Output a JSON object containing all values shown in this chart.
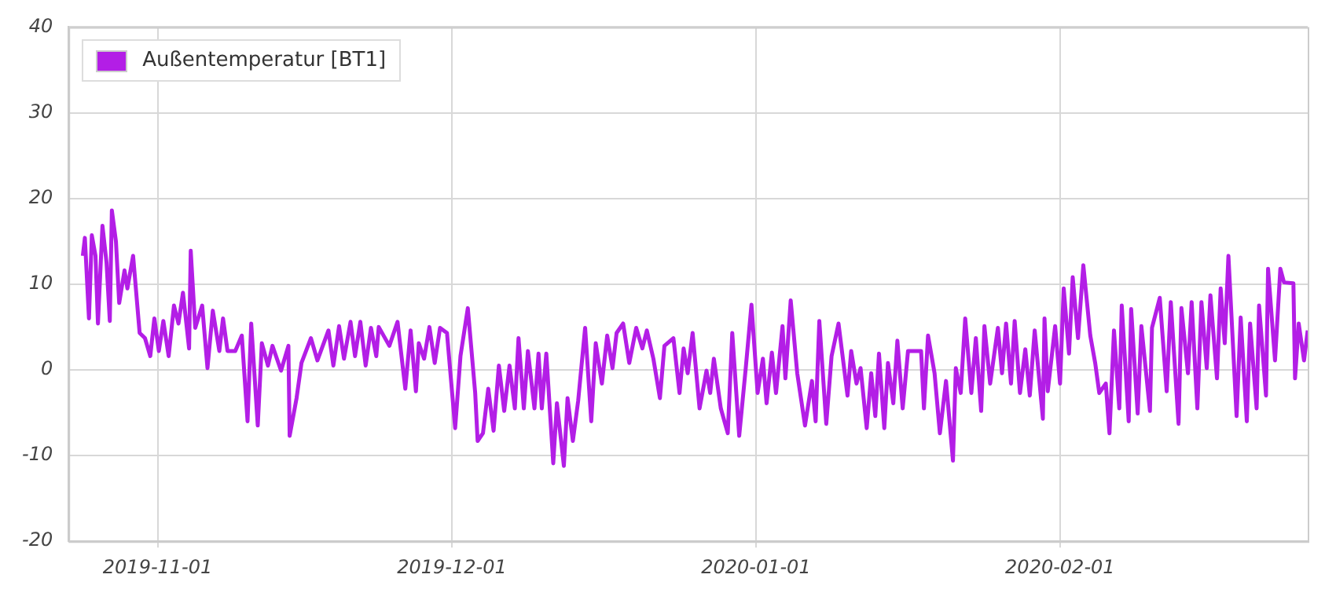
{
  "chart_data": {
    "type": "line",
    "legend": "top left",
    "grid": true,
    "marker": "none",
    "line_style": "solid",
    "xlim": [
      "2019-10-22T22:00",
      "2020-02-26T06:00"
    ],
    "xticks": [
      "2019-11-01",
      "2019-12-01",
      "2020-01-01",
      "2020-02-01"
    ],
    "ylim": [
      -20,
      40
    ],
    "yticks": [
      -20,
      -10,
      0,
      10,
      20,
      30,
      40
    ],
    "x": [
      "2019-10-24T09:00",
      "2019-10-24T14:00",
      "2019-10-25T00:00",
      "2019-10-25T07:00",
      "2019-10-25T16:00",
      "2019-10-25T22:00",
      "2019-10-26T09:00",
      "2019-10-26T19:00",
      "2019-10-27T03:00",
      "2019-10-27T08:00",
      "2019-10-27T18:00",
      "2019-10-28T02:00",
      "2019-10-28T15:00",
      "2019-10-28T22:00",
      "2019-10-29T12:00",
      "2019-10-30T04:00",
      "2019-10-30T17:00",
      "2019-10-31T06:00",
      "2019-10-31T16:00",
      "2019-11-01T03:00",
      "2019-11-01T14:00",
      "2019-11-02T03:00",
      "2019-11-02T16:00",
      "2019-11-03T03:00",
      "2019-11-03T14:00",
      "2019-11-04T05:00",
      "2019-11-04T09:00",
      "2019-11-04T20:00",
      "2019-11-05T13:00",
      "2019-11-06T02:00",
      "2019-11-06T15:00",
      "2019-11-07T07:00",
      "2019-11-07T16:00",
      "2019-11-08T03:00",
      "2019-11-08T22:00",
      "2019-11-09T14:00",
      "2019-11-10T04:00",
      "2019-11-10T13:00",
      "2019-11-11T05:00",
      "2019-11-11T15:00",
      "2019-11-12T06:00",
      "2019-11-12T17:00",
      "2019-11-13T14:00",
      "2019-11-14T08:00",
      "2019-11-14T11:00",
      "2019-11-15T04:00",
      "2019-11-15T16:00",
      "2019-11-16T15:00",
      "2019-11-17T07:00",
      "2019-11-18T10:00",
      "2019-11-18T22:00",
      "2019-11-19T12:00",
      "2019-11-20T00:00",
      "2019-11-20T16:00",
      "2019-11-21T03:00",
      "2019-11-21T16:00",
      "2019-11-22T05:00",
      "2019-11-22T18:00",
      "2019-11-23T07:00",
      "2019-11-23T13:00",
      "2019-11-24T15:00",
      "2019-11-25T11:00",
      "2019-11-26T06:00",
      "2019-11-26T19:00",
      "2019-11-27T08:00",
      "2019-11-27T15:00",
      "2019-11-28T04:00",
      "2019-11-28T17:00",
      "2019-11-29T06:00",
      "2019-11-29T19:00",
      "2019-11-30T12:00",
      "2019-12-01T08:00",
      "2019-12-01T21:00",
      "2019-12-02T15:00",
      "2019-12-03T09:00",
      "2019-12-03T15:00",
      "2019-12-04T04:00",
      "2019-12-04T17:00",
      "2019-12-05T06:00",
      "2019-12-05T19:00",
      "2019-12-06T08:00",
      "2019-12-06T21:00",
      "2019-12-07T10:00",
      "2019-12-07T19:00",
      "2019-12-08T08:00",
      "2019-12-08T18:00",
      "2019-12-09T10:00",
      "2019-12-09T20:00",
      "2019-12-10T04:00",
      "2019-12-10T15:00",
      "2019-12-11T08:00",
      "2019-12-11T17:00",
      "2019-12-12T10:00",
      "2019-12-12T19:00",
      "2019-12-13T08:00",
      "2019-12-13T21:00",
      "2019-12-14T14:00",
      "2019-12-15T05:00",
      "2019-12-15T16:00",
      "2019-12-16T07:00",
      "2019-12-16T20:00",
      "2019-12-17T09:00",
      "2019-12-17T19:00",
      "2019-12-18T11:00",
      "2019-12-19T02:00",
      "2019-12-19T19:00",
      "2019-12-20T10:00",
      "2019-12-20T21:00",
      "2019-12-21T13:00",
      "2019-12-22T05:00",
      "2019-12-22T16:00",
      "2019-12-23T14:00",
      "2019-12-24T05:00",
      "2019-12-24T15:00",
      "2019-12-25T01:00",
      "2019-12-25T13:00",
      "2019-12-26T06:00",
      "2019-12-26T23:00",
      "2019-12-27T08:00",
      "2019-12-27T17:00",
      "2019-12-28T10:00",
      "2019-12-29T03:00",
      "2019-12-29T14:00",
      "2019-12-30T07:00",
      "2019-12-30T23:00",
      "2019-12-31T13:00",
      "2020-01-01T04:00",
      "2020-01-01T17:00",
      "2020-01-02T02:00",
      "2020-01-02T15:00",
      "2020-01-03T01:00",
      "2020-01-03T17:00",
      "2020-01-04T00:00",
      "2020-01-04T13:00",
      "2020-01-05T05:00",
      "2020-01-06T00:00",
      "2020-01-06T17:00",
      "2020-01-07T02:00",
      "2020-01-07T11:00",
      "2020-01-08T04:00",
      "2020-01-08T17:00",
      "2020-01-09T10:00",
      "2020-01-10T08:00",
      "2020-01-10T17:00",
      "2020-01-11T06:00",
      "2020-01-11T16:00",
      "2020-01-12T07:00",
      "2020-01-12T18:00",
      "2020-01-13T04:00",
      "2020-01-13T13:00",
      "2020-01-14T02:00",
      "2020-01-14T11:00",
      "2020-01-15T00:00",
      "2020-01-15T10:00",
      "2020-01-15T23:00",
      "2020-01-16T12:00",
      "2020-01-17T20:00",
      "2020-01-18T03:00",
      "2020-01-18T13:00",
      "2020-01-19T05:00",
      "2020-01-19T18:00",
      "2020-01-20T09:00",
      "2020-01-21T02:00",
      "2020-01-21T09:00",
      "2020-01-21T21:00",
      "2020-01-22T08:00",
      "2020-01-22T23:00",
      "2020-01-23T10:00",
      "2020-01-23T23:00",
      "2020-01-24T07:00",
      "2020-01-24T21:00",
      "2020-01-25T16:00",
      "2020-01-26T02:00",
      "2020-01-26T12:00",
      "2020-01-27T00:00",
      "2020-01-27T09:00",
      "2020-01-27T22:00",
      "2020-01-28T11:00",
      "2020-01-28T22:00",
      "2020-01-29T10:00",
      "2020-01-30T06:00",
      "2020-01-30T10:00",
      "2020-01-30T18:00",
      "2020-01-31T12:00",
      "2020-02-01T00:00",
      "2020-02-01T09:00",
      "2020-02-01T22:00",
      "2020-02-02T07:00",
      "2020-02-02T20:00",
      "2020-02-03T09:00",
      "2020-02-04T02:00",
      "2020-02-04T14:00",
      "2020-02-05T00:00",
      "2020-02-05T16:00",
      "2020-02-06T01:00",
      "2020-02-06T12:00",
      "2020-02-07T01:00",
      "2020-02-07T07:00",
      "2020-02-08T00:00",
      "2020-02-08T06:00",
      "2020-02-08T22:00",
      "2020-02-09T07:00",
      "2020-02-10T04:00",
      "2020-02-10T09:00",
      "2020-02-11T04:00",
      "2020-02-11T21:00",
      "2020-02-12T07:00",
      "2020-02-13T02:00",
      "2020-02-13T09:00",
      "2020-02-14T01:00",
      "2020-02-14T10:00",
      "2020-02-15T00:00",
      "2020-02-15T10:00",
      "2020-02-15T23:00",
      "2020-02-16T08:00",
      "2020-02-17T00:00",
      "2020-02-17T09:00",
      "2020-02-17T19:00",
      "2020-02-18T04:00",
      "2020-02-19T00:00",
      "2020-02-19T10:00",
      "2020-02-20T01:00",
      "2020-02-20T09:00",
      "2020-02-21T01:00",
      "2020-02-21T07:00",
      "2020-02-22T00:00",
      "2020-02-22T05:00",
      "2020-02-22T22:00",
      "2020-02-23T11:00",
      "2020-02-23T20:00",
      "2020-02-24T19:00",
      "2020-02-24T23:00",
      "2020-02-25T08:00",
      "2020-02-25T21:00",
      "2020-02-26T06:00"
    ],
    "series": [
      {
        "name": "Außentemperatur [BT1]",
        "color": "#b31ee6",
        "values": [
          13.3,
          15.4,
          6,
          15.7,
          13.3,
          5.4,
          16.8,
          12.5,
          5.7,
          18.6,
          15,
          7.8,
          11.6,
          9.5,
          13.3,
          4.3,
          3.7,
          1.6,
          6,
          2.2,
          5.7,
          1.6,
          7.5,
          5.4,
          9,
          2.5,
          13.9,
          4.9,
          7.5,
          0.2,
          6.9,
          2.2,
          6,
          2.2,
          2.2,
          4,
          -6,
          5.4,
          -6.5,
          3.1,
          0.5,
          2.8,
          -0.1,
          2.8,
          -7.7,
          -3.3,
          0.8,
          3.7,
          1.1,
          4.6,
          0.5,
          5.1,
          1.3,
          5.6,
          1.6,
          5.6,
          0.5,
          4.9,
          1.6,
          5,
          2.8,
          5.6,
          -2.2,
          4.6,
          -2.5,
          3.1,
          1.3,
          5,
          0.8,
          4.9,
          4.3,
          -6.8,
          1.6,
          7.2,
          -2.7,
          -8.3,
          -7.4,
          -2.2,
          -7.1,
          0.5,
          -4.8,
          0.5,
          -4.5,
          3.7,
          -4.5,
          2.2,
          -4.5,
          1.9,
          -4.5,
          1.9,
          -10.9,
          -3.9,
          -11.2,
          -3.3,
          -8.3,
          -3.6,
          4.9,
          -6,
          3.1,
          -1.6,
          4,
          0.2,
          4.3,
          5.4,
          0.8,
          4.9,
          2.5,
          4.6,
          1.3,
          -3.3,
          2.8,
          3.7,
          -2.7,
          2.5,
          -0.4,
          4.3,
          -4.5,
          -0.1,
          -2.7,
          1.3,
          -4.5,
          -7.4,
          4.3,
          -7.7,
          0.2,
          7.6,
          -2.7,
          1.3,
          -3.9,
          2,
          -2.7,
          5.1,
          -1,
          8.1,
          -0.4,
          -6.5,
          -1.3,
          -6,
          5.7,
          -6.3,
          1.6,
          5.4,
          -3,
          2.2,
          -1.6,
          0.2,
          -6.8,
          -0.4,
          -5.4,
          1.9,
          -6.8,
          0.8,
          -3.9,
          3.4,
          -4.5,
          2.2,
          2.2,
          -4.5,
          4,
          -0.4,
          -7.4,
          -1.3,
          -10.6,
          0.2,
          -2.7,
          6,
          -2.7,
          3.7,
          -4.8,
          5.1,
          -1.6,
          4.9,
          -0.4,
          5.4,
          -1.6,
          5.7,
          -2.7,
          2.4,
          -3,
          4.6,
          -5.7,
          6,
          -2.5,
          5.1,
          -1.6,
          9.5,
          1.9,
          10.8,
          3.7,
          12.2,
          4,
          0.8,
          -2.7,
          -1.6,
          -7.4,
          4.6,
          -4.5,
          7.5,
          -6,
          7.1,
          -5.1,
          5.1,
          -4.8,
          4.9,
          8.4,
          -2.5,
          7.9,
          -6.3,
          7.2,
          -0.4,
          7.9,
          -4.5,
          7.9,
          0.2,
          8.7,
          -1,
          9.5,
          3.1,
          13.3,
          -5.4,
          6.1,
          -6,
          5.4,
          -4.5,
          7.5,
          -3,
          11.8,
          1.1,
          11.8,
          10.2,
          10.1,
          -1,
          5.4,
          1.1,
          4.6
        ]
      }
    ]
  }
}
